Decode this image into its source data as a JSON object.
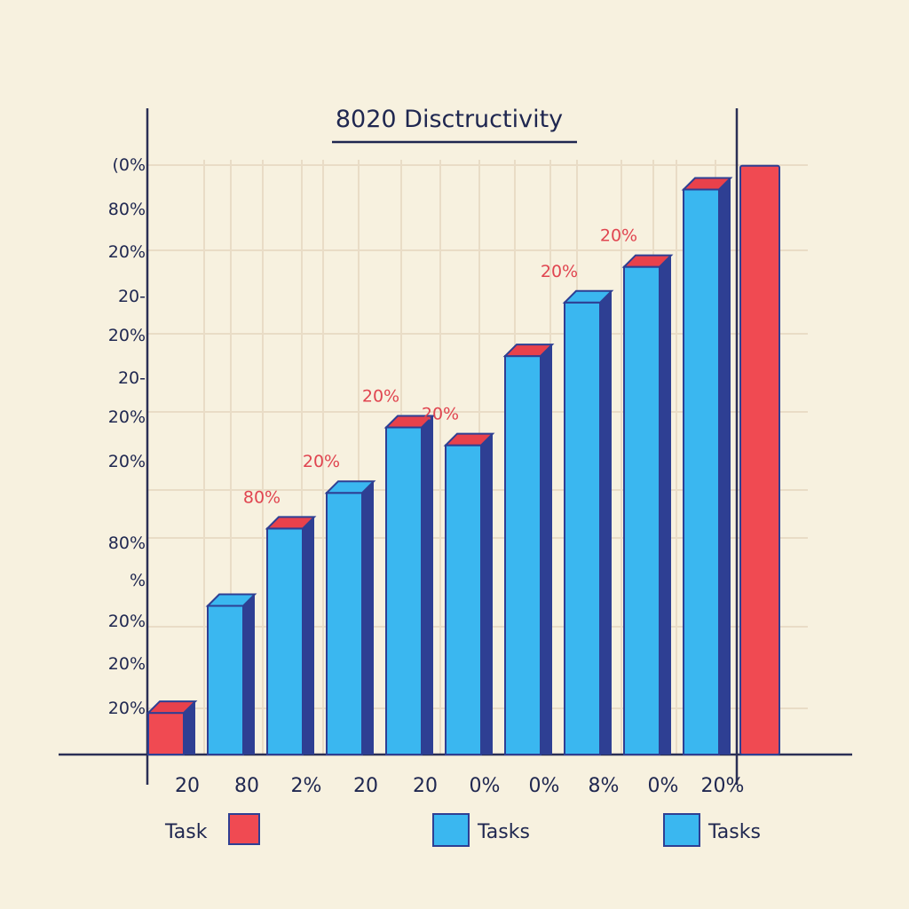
{
  "colors": {
    "background": "#f7f1df",
    "grid": "#e9dcc6",
    "axis": "#2a2f55",
    "bar_front": "#3ab7f0",
    "bar_side": "#2e3f93",
    "bar_cap": "#e8414b",
    "highlight": "#f04a52",
    "label_red": "#e04550",
    "text": "#1f2750"
  },
  "chart_data": {
    "type": "bar",
    "title": "8020 Disctructivity",
    "xlabel": "",
    "ylabel": "",
    "ylim": [
      0,
      100
    ],
    "grid": true,
    "categories": [
      "20",
      "80",
      "2%",
      "20",
      "20",
      "0%",
      "0%",
      "8%",
      "0%",
      "20%"
    ],
    "values": [
      7,
      25,
      38,
      44,
      55,
      52,
      67,
      76,
      82,
      95
    ],
    "highlight_value": 99,
    "data_labels": [
      "",
      "",
      "80%",
      "20%",
      "20%",
      "20%",
      "",
      "20%",
      "20%",
      ""
    ],
    "y_tick_labels": [
      "(0%",
      "80%",
      "20%",
      "20-",
      "20%",
      "20-",
      "20%",
      "20%",
      "80%",
      "%",
      "20%",
      "20%",
      "20%"
    ],
    "legend": [
      {
        "label": "Task",
        "swatch": "red",
        "position": "bottom-left"
      },
      {
        "label": "Tasks",
        "swatch": "blue",
        "position": "bottom-center"
      },
      {
        "label": "Tasks",
        "swatch": "blue",
        "position": "bottom-right"
      }
    ]
  }
}
